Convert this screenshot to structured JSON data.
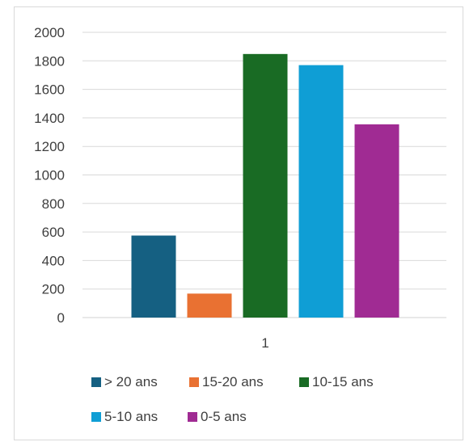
{
  "chart_data": {
    "type": "bar",
    "title": "",
    "xlabel": "",
    "ylabel": "",
    "categories": [
      "1"
    ],
    "ylim": [
      0,
      2000
    ],
    "yticks": [
      0,
      200,
      400,
      600,
      800,
      1000,
      1200,
      1400,
      1600,
      1800,
      2000
    ],
    "grid": true,
    "legend_position": "bottom",
    "series": [
      {
        "name": "> 20 ans",
        "values": [
          575
        ],
        "color": "#156082"
      },
      {
        "name": "15-20 ans",
        "values": [
          168
        ],
        "color": "#E97132"
      },
      {
        "name": "10-15 ans",
        "values": [
          1848
        ],
        "color": "#196B24"
      },
      {
        "name": "5-10 ans",
        "values": [
          1770
        ],
        "color": "#0F9ED5"
      },
      {
        "name": "0-5 ans",
        "values": [
          1355
        ],
        "color": "#A02B93"
      }
    ]
  }
}
